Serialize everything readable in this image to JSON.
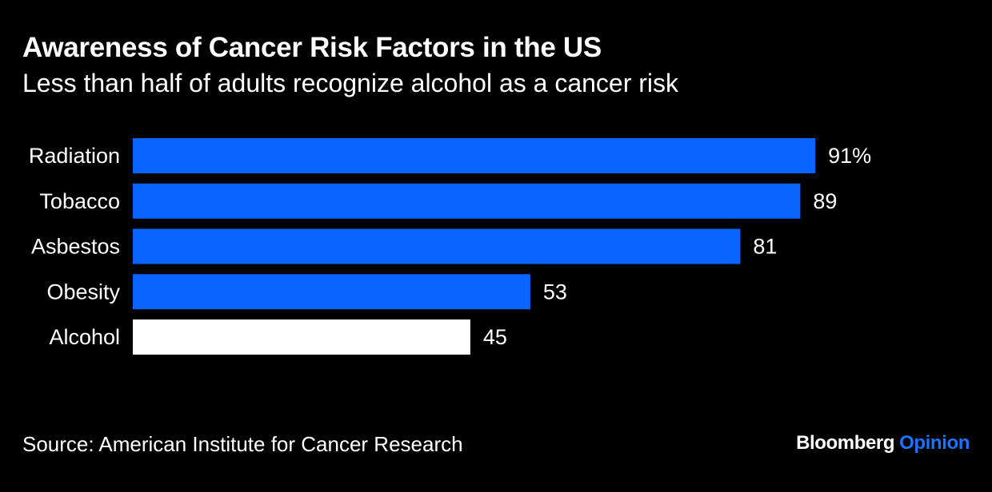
{
  "header": {
    "title": "Awareness of Cancer Risk Factors in the US",
    "subtitle": "Less than half of adults recognize alcohol as a cancer risk"
  },
  "chart_data": {
    "type": "bar",
    "orientation": "horizontal",
    "categories": [
      "Radiation",
      "Tobacco",
      "Asbestos",
      "Obesity",
      "Alcohol"
    ],
    "values": [
      91,
      89,
      81,
      53,
      45
    ],
    "value_labels": [
      "91%",
      "89",
      "81",
      "53",
      "45"
    ],
    "bar_colors": [
      "#0a64ff",
      "#0a64ff",
      "#0a64ff",
      "#0a64ff",
      "#ffffff"
    ],
    "title": "Awareness of Cancer Risk Factors in the US",
    "xlabel": "",
    "ylabel": "",
    "xlim": [
      0,
      100
    ],
    "grid": false
  },
  "footer": {
    "source": "Source: American Institute for Cancer Research",
    "brand_name": "Bloomberg",
    "brand_section": "Opinion"
  },
  "colors": {
    "background": "#000000",
    "text": "#ffffff",
    "accent": "#0a64ff",
    "brand_accent": "#1a73ff"
  }
}
